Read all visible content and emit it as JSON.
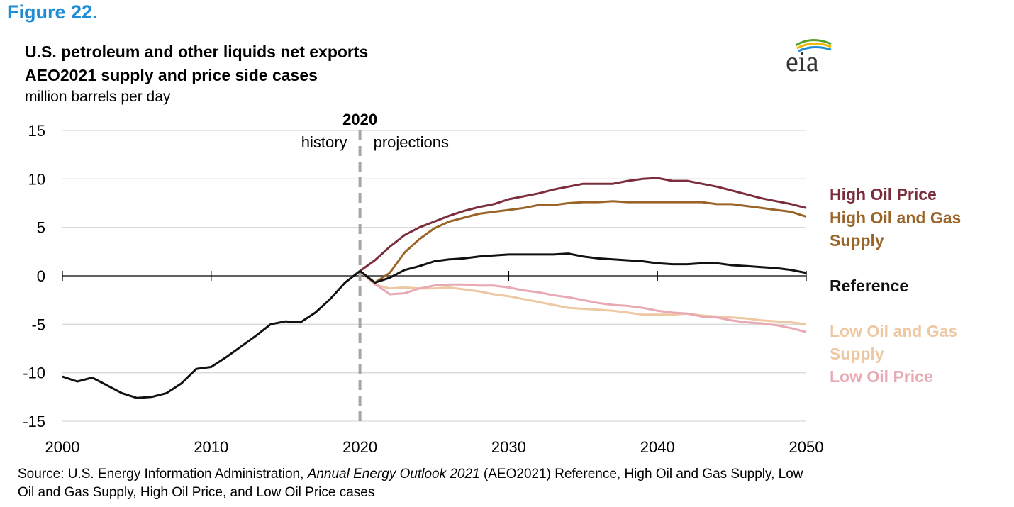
{
  "figure_label": "Figure 22.",
  "logo_text": "eia",
  "source": {
    "prefix": "Source: U.S. Energy Information Administration, ",
    "italic": "Annual Energy Outlook 2021",
    "suffix": " (AEO2021) Reference, High Oil and Gas Supply, Low Oil and Gas Supply, High Oil Price, and Low Oil Price cases"
  },
  "colors": {
    "high_oil_price": "#7b2d3b",
    "high_oil_gas_supply": "#9a6428",
    "reference": "#111111",
    "low_oil_gas_supply": "#eec7a3",
    "low_oil_price": "#e8a9b3",
    "grid": "#d9d9d9",
    "divider": "#a6a6a6",
    "figure_label": "#1f8dd6"
  },
  "chart_data": {
    "type": "line",
    "title": "U.S. petroleum and other liquids net exports",
    "subtitle": "AEO2021 supply and price side cases",
    "ylabel": "million  barrels per day",
    "xlabel": "",
    "xlim": [
      2000,
      2050
    ],
    "ylim": [
      -15,
      15
    ],
    "yticks": [
      15,
      10,
      5,
      0,
      -5,
      -10,
      -15
    ],
    "xticks": [
      2000,
      2010,
      2020,
      2030,
      2040,
      2050
    ],
    "grid": true,
    "divider": {
      "x": 2020,
      "label": "2020",
      "left_text": "history",
      "right_text": "projections"
    },
    "history": {
      "name": "History",
      "x": [
        2000,
        2001,
        2002,
        2003,
        2004,
        2005,
        2006,
        2007,
        2008,
        2009,
        2010,
        2011,
        2012,
        2013,
        2014,
        2015,
        2016,
        2017,
        2018,
        2019,
        2020
      ],
      "values": [
        -10.4,
        -10.9,
        -10.5,
        -11.3,
        -12.1,
        -12.6,
        -12.5,
        -12.1,
        -11.1,
        -9.6,
        -9.4,
        -8.4,
        -7.3,
        -6.2,
        -5.0,
        -4.7,
        -4.8,
        -3.8,
        -2.4,
        -0.7,
        0.5
      ]
    },
    "series": [
      {
        "name": "High Oil Price",
        "legend": [
          "High Oil Price"
        ],
        "color_key": "high_oil_price",
        "x": [
          2020,
          2021,
          2022,
          2023,
          2024,
          2025,
          2026,
          2027,
          2028,
          2029,
          2030,
          2031,
          2032,
          2033,
          2034,
          2035,
          2036,
          2037,
          2038,
          2039,
          2040,
          2041,
          2042,
          2043,
          2044,
          2045,
          2046,
          2047,
          2048,
          2049,
          2050
        ],
        "values": [
          0.5,
          1.6,
          3.0,
          4.2,
          5.0,
          5.6,
          6.2,
          6.7,
          7.1,
          7.4,
          7.9,
          8.2,
          8.5,
          8.9,
          9.2,
          9.5,
          9.5,
          9.5,
          9.8,
          10.0,
          10.1,
          9.8,
          9.8,
          9.5,
          9.2,
          8.8,
          8.4,
          8.0,
          7.7,
          7.4,
          7.0
        ]
      },
      {
        "name": "High Oil and Gas Supply",
        "legend": [
          "High Oil and Gas",
          "Supply"
        ],
        "color_key": "high_oil_gas_supply",
        "x": [
          2020,
          2021,
          2022,
          2023,
          2024,
          2025,
          2026,
          2027,
          2028,
          2029,
          2030,
          2031,
          2032,
          2033,
          2034,
          2035,
          2036,
          2037,
          2038,
          2039,
          2040,
          2041,
          2042,
          2043,
          2044,
          2045,
          2046,
          2047,
          2048,
          2049,
          2050
        ],
        "values": [
          0.5,
          -0.7,
          0.3,
          2.4,
          3.8,
          4.9,
          5.6,
          6.0,
          6.4,
          6.6,
          6.8,
          7.0,
          7.3,
          7.3,
          7.5,
          7.6,
          7.6,
          7.7,
          7.6,
          7.6,
          7.6,
          7.6,
          7.6,
          7.6,
          7.4,
          7.4,
          7.2,
          7.0,
          6.8,
          6.6,
          6.1
        ]
      },
      {
        "name": "Reference",
        "legend": [
          "Reference"
        ],
        "color_key": "reference",
        "x": [
          2020,
          2021,
          2022,
          2023,
          2024,
          2025,
          2026,
          2027,
          2028,
          2029,
          2030,
          2031,
          2032,
          2033,
          2034,
          2035,
          2036,
          2037,
          2038,
          2039,
          2040,
          2041,
          2042,
          2043,
          2044,
          2045,
          2046,
          2047,
          2048,
          2049,
          2050
        ],
        "values": [
          0.5,
          -0.7,
          -0.2,
          0.6,
          1.0,
          1.5,
          1.7,
          1.8,
          2.0,
          2.1,
          2.2,
          2.2,
          2.2,
          2.2,
          2.3,
          2.0,
          1.8,
          1.7,
          1.6,
          1.5,
          1.3,
          1.2,
          1.2,
          1.3,
          1.3,
          1.1,
          1.0,
          0.9,
          0.8,
          0.6,
          0.3
        ]
      },
      {
        "name": "Low Oil and Gas Supply",
        "legend": [
          "Low Oil and Gas",
          "Supply"
        ],
        "color_key": "low_oil_gas_supply",
        "x": [
          2020,
          2021,
          2022,
          2023,
          2024,
          2025,
          2026,
          2027,
          2028,
          2029,
          2030,
          2031,
          2032,
          2033,
          2034,
          2035,
          2036,
          2037,
          2038,
          2039,
          2040,
          2041,
          2042,
          2043,
          2044,
          2045,
          2046,
          2047,
          2048,
          2049,
          2050
        ],
        "values": [
          0.5,
          -0.9,
          -1.3,
          -1.2,
          -1.3,
          -1.3,
          -1.2,
          -1.4,
          -1.6,
          -1.9,
          -2.1,
          -2.4,
          -2.7,
          -3.0,
          -3.3,
          -3.4,
          -3.5,
          -3.6,
          -3.8,
          -4.0,
          -4.0,
          -4.0,
          -3.9,
          -4.1,
          -4.2,
          -4.3,
          -4.4,
          -4.6,
          -4.7,
          -4.8,
          -5.0
        ]
      },
      {
        "name": "Low Oil Price",
        "legend": [
          "Low Oil Price"
        ],
        "color_key": "low_oil_price",
        "x": [
          2020,
          2021,
          2022,
          2023,
          2024,
          2025,
          2026,
          2027,
          2028,
          2029,
          2030,
          2031,
          2032,
          2033,
          2034,
          2035,
          2036,
          2037,
          2038,
          2039,
          2040,
          2041,
          2042,
          2043,
          2044,
          2045,
          2046,
          2047,
          2048,
          2049,
          2050
        ],
        "values": [
          0.5,
          -0.8,
          -1.9,
          -1.8,
          -1.3,
          -1.0,
          -0.9,
          -0.9,
          -1.0,
          -1.0,
          -1.2,
          -1.5,
          -1.7,
          -2.0,
          -2.2,
          -2.5,
          -2.8,
          -3.0,
          -3.1,
          -3.3,
          -3.6,
          -3.8,
          -3.9,
          -4.2,
          -4.3,
          -4.6,
          -4.8,
          -4.9,
          -5.1,
          -5.4,
          -5.8
        ]
      }
    ]
  }
}
